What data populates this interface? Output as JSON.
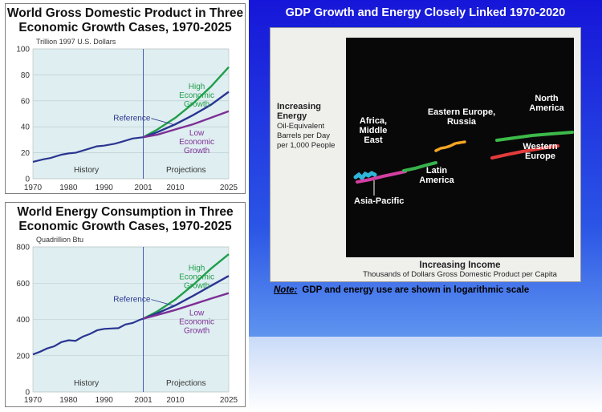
{
  "left_charts": [
    {
      "title_line1": "World Gross Domestic Product in Three",
      "title_line2": "Economic Growth Cases, 1970-2025",
      "unit_label": "Trillion 1997 U.S. Dollars",
      "history_label": "History",
      "projections_label": "Projections",
      "reference_label": "Reference",
      "high_label": [
        "High",
        "Economic",
        "Growth"
      ],
      "low_label": [
        "Low",
        "Economic",
        "Growth"
      ],
      "chart_data": {
        "type": "line",
        "title": "World Gross Domestic Product in Three Economic Growth Cases, 1970-2025",
        "ylabel": "Trillion 1997 U.S. Dollars",
        "ylim": [
          0,
          100
        ],
        "yticks": [
          0,
          20,
          40,
          60,
          80,
          100
        ],
        "x_tick_labels": [
          "1970",
          "1980",
          "1990",
          "2001",
          "2010",
          "2025"
        ],
        "history": {
          "x": [
            1970,
            1973,
            1975,
            1978,
            1980,
            1982,
            1985,
            1988,
            1990,
            1993,
            1995,
            1998,
            2001
          ],
          "y": [
            13.0,
            15.0,
            16.0,
            18.5,
            19.5,
            20.0,
            22.5,
            25.0,
            25.5,
            27.0,
            28.5,
            31.0,
            32.0
          ]
        },
        "series": [
          {
            "name": "High Economic Growth",
            "x": [
              2001,
              2005,
              2010,
              2015,
              2020,
              2025
            ],
            "y": [
              32,
              38,
              47,
              58,
              71,
              86
            ],
            "color": "#1f9e4a"
          },
          {
            "name": "Reference",
            "x": [
              2001,
              2005,
              2010,
              2015,
              2020,
              2025
            ],
            "y": [
              32,
              36,
              42,
              49,
              57,
              67
            ],
            "color": "#2a3592"
          },
          {
            "name": "Low Economic Growth",
            "x": [
              2001,
              2005,
              2010,
              2015,
              2020,
              2025
            ],
            "y": [
              32,
              34,
              38,
              42,
              47,
              52
            ],
            "color": "#7d2f96"
          }
        ],
        "divider_year": 2001
      }
    },
    {
      "title_line1": "World Energy Consumption in Three",
      "title_line2": "Economic Growth Cases, 1970-2025",
      "unit_label": "Quadrillion Btu",
      "history_label": "History",
      "projections_label": "Projections",
      "reference_label": "Reference",
      "high_label": [
        "High",
        "Economic",
        "Growth"
      ],
      "low_label": [
        "Low",
        "Economic",
        "Growth"
      ],
      "chart_data": {
        "type": "line",
        "title": "World Energy Consumption in Three Economic Growth Cases, 1970-2025",
        "ylabel": "Quadrillion Btu",
        "ylim": [
          0,
          800
        ],
        "yticks": [
          0,
          200,
          400,
          600,
          800
        ],
        "x_tick_labels": [
          "1970",
          "1980",
          "1990",
          "2001",
          "2010",
          "2025"
        ],
        "history": {
          "x": [
            1970,
            1972,
            1974,
            1976,
            1978,
            1980,
            1982,
            1984,
            1986,
            1988,
            1990,
            1992,
            1994,
            1996,
            1998,
            2000,
            2001
          ],
          "y": [
            207,
            222,
            240,
            252,
            275,
            285,
            282,
            305,
            320,
            340,
            348,
            350,
            352,
            372,
            380,
            398,
            404
          ]
        },
        "series": [
          {
            "name": "High Economic Growth",
            "x": [
              2001,
              2005,
              2010,
              2015,
              2020,
              2025
            ],
            "y": [
              404,
              445,
              510,
              590,
              680,
              760
            ],
            "color": "#1f9e4a"
          },
          {
            "name": "Reference",
            "x": [
              2001,
              2005,
              2010,
              2015,
              2020,
              2025
            ],
            "y": [
              404,
              435,
              478,
              530,
              585,
              640
            ],
            "color": "#2a3592"
          },
          {
            "name": "Low Economic Growth",
            "x": [
              2001,
              2005,
              2010,
              2015,
              2020,
              2025
            ],
            "y": [
              404,
              425,
              452,
              483,
              515,
              545
            ],
            "color": "#7d2f96"
          }
        ],
        "divider_year": 2001
      }
    }
  ],
  "right_panel": {
    "title": "GDP Growth and Energy Closely Linked 1970-2020",
    "y_axis_label": [
      "Increasing",
      "Energy"
    ],
    "y_axis_sub": [
      "Oil-Equivalent",
      "Barrels per Day",
      "per 1,000 People"
    ],
    "x_axis_label": "Increasing Income",
    "x_axis_sub": "Thousands of Dollars Gross Domestic Product per Capita",
    "regions": {
      "africa": [
        "Africa,",
        "Middle",
        "East"
      ],
      "asia_pacific": "Asia-Pacific",
      "latin_america": [
        "Latin",
        "America"
      ],
      "eastern_europe": [
        "Eastern Europe,",
        "Russia"
      ],
      "north_america": [
        "North",
        "America"
      ],
      "western_europe": [
        "Western",
        "Europe"
      ]
    },
    "note_label": "Note:",
    "note_text": "GDP and energy use are shown in logarithmic scale"
  }
}
